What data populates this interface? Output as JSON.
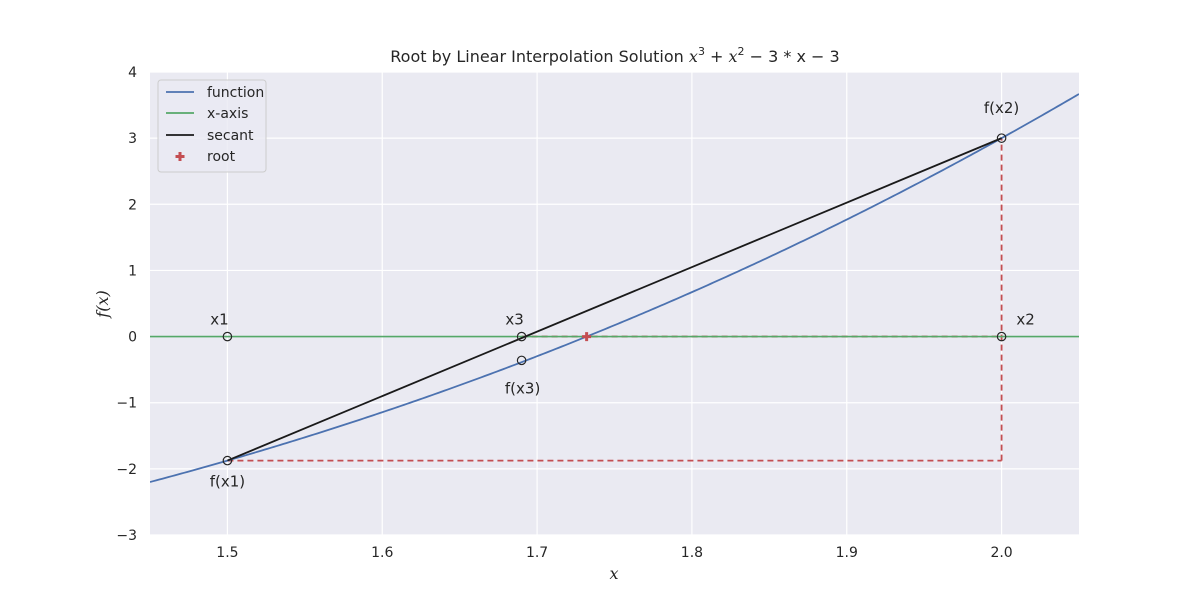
{
  "chart_data": {
    "type": "line",
    "title": "Root by Linear Interpolation Solution",
    "title_math": {
      "base": "x",
      "sup3": "3",
      "plus": " + ",
      "base2": "x",
      "sup2": "2",
      "tail": " − 3 * x − 3"
    },
    "xlabel": "x",
    "ylabel": "f(x)",
    "xlim": [
      1.45,
      2.05
    ],
    "ylim": [
      -3,
      4
    ],
    "xticks": [
      1.5,
      1.6,
      1.7,
      1.8,
      1.9,
      2.0
    ],
    "xtick_labels": [
      "1.5",
      "1.6",
      "1.7",
      "1.8",
      "1.9",
      "2.0"
    ],
    "yticks": [
      -3,
      -2,
      -1,
      0,
      1,
      2,
      3,
      4
    ],
    "ytick_labels": [
      "−3",
      "−2",
      "−1",
      "0",
      "1",
      "2",
      "3",
      "4"
    ],
    "grid": true,
    "legend_position": "top-left",
    "series": [
      {
        "name": "function",
        "color": "#4c72b0",
        "style": "solid",
        "kind": "curve",
        "coefficients": [
          1,
          1,
          -3,
          -3
        ]
      },
      {
        "name": "x-axis",
        "color": "#55a868",
        "style": "solid",
        "kind": "hline",
        "y": 0
      },
      {
        "name": "secant",
        "color": "#1a1a1a",
        "style": "solid",
        "x": [
          1.5,
          2.0
        ],
        "y": [
          -1.875,
          3.0
        ]
      },
      {
        "name": "root",
        "color": "#c44e52",
        "style": "marker-plus",
        "x": [
          1.732
        ],
        "y": [
          0
        ]
      }
    ],
    "dashed_guides": {
      "color": "#c44e52",
      "segments": [
        {
          "x": [
            1.5,
            2.0
          ],
          "y": [
            -1.875,
            -1.875
          ]
        },
        {
          "x": [
            2.0,
            2.0
          ],
          "y": [
            -1.875,
            3.0
          ]
        },
        {
          "x": [
            1.69,
            2.0
          ],
          "y": [
            0,
            0
          ]
        }
      ]
    },
    "points": [
      {
        "label": "x1",
        "x": 1.5,
        "y": 0
      },
      {
        "label": "f(x1)",
        "x": 1.5,
        "y": -1.875
      },
      {
        "label": "x2",
        "x": 2.0,
        "y": 0
      },
      {
        "label": "f(x2)",
        "x": 2.0,
        "y": 3.0
      },
      {
        "label": "x3",
        "x": 1.69,
        "y": 0
      },
      {
        "label": "f(x3)",
        "x": 1.69,
        "y": -0.36
      }
    ]
  }
}
